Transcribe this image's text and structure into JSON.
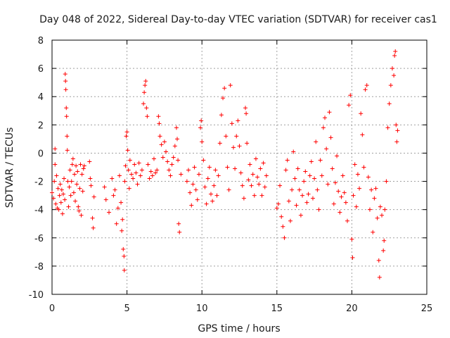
{
  "chart_data": {
    "type": "scatter",
    "title": "Day 048 of 2022, Sidereal Day-to-day VTEC variation (SDTVAR) for receiver cas1",
    "xlabel": "GPS time / hours",
    "ylabel": "SDTVAR / TECUs",
    "xlim": [
      0,
      25
    ],
    "ylim": [
      -10,
      8
    ],
    "xticks": [
      0,
      5,
      10,
      15,
      20,
      25
    ],
    "yticks": [
      -10,
      -8,
      -6,
      -4,
      -2,
      0,
      2,
      4,
      6,
      8
    ],
    "grid": true,
    "marker": "+",
    "marker_color": "#ff0000",
    "series": [
      {
        "name": "SDTVAR",
        "points": [
          [
            0.0,
            -2.8
          ],
          [
            0.1,
            -3.2
          ],
          [
            0.15,
            -2.0
          ],
          [
            0.2,
            -0.8
          ],
          [
            0.2,
            0.3
          ],
          [
            0.25,
            -3.6
          ],
          [
            0.3,
            -1.6
          ],
          [
            0.35,
            -3.9
          ],
          [
            0.4,
            -2.5
          ],
          [
            0.45,
            -4.0
          ],
          [
            0.5,
            -3.0
          ],
          [
            0.55,
            -2.2
          ],
          [
            0.6,
            -3.5
          ],
          [
            0.65,
            -2.6
          ],
          [
            0.7,
            -4.3
          ],
          [
            0.75,
            -2.9
          ],
          [
            0.8,
            -1.8
          ],
          [
            0.85,
            -3.3
          ],
          [
            0.88,
            5.6
          ],
          [
            0.9,
            5.1
          ],
          [
            0.92,
            4.5
          ],
          [
            0.95,
            3.2
          ],
          [
            0.97,
            2.6
          ],
          [
            1.0,
            1.2
          ],
          [
            1.02,
            0.2
          ],
          [
            1.05,
            -2.0
          ],
          [
            1.1,
            -3.8
          ],
          [
            1.15,
            -2.4
          ],
          [
            1.2,
            -1.2
          ],
          [
            1.25,
            -3.0
          ],
          [
            1.3,
            -2.0
          ],
          [
            1.35,
            -0.8
          ],
          [
            1.4,
            -0.4
          ],
          [
            1.45,
            -2.8
          ],
          [
            1.5,
            -1.5
          ],
          [
            1.55,
            -3.4
          ],
          [
            1.6,
            -0.9
          ],
          [
            1.65,
            -2.2
          ],
          [
            1.7,
            -1.3
          ],
          [
            1.75,
            -3.8
          ],
          [
            1.8,
            -4.1
          ],
          [
            1.85,
            -2.5
          ],
          [
            1.9,
            -0.8
          ],
          [
            1.95,
            -4.4
          ],
          [
            2.0,
            -1.5
          ],
          [
            2.05,
            -2.7
          ],
          [
            2.1,
            -1.1
          ],
          [
            2.15,
            -0.9
          ],
          [
            2.5,
            -0.6
          ],
          [
            2.55,
            -1.8
          ],
          [
            2.6,
            -2.3
          ],
          [
            2.7,
            -4.6
          ],
          [
            2.75,
            -5.3
          ],
          [
            2.8,
            -3.1
          ],
          [
            3.5,
            -2.4
          ],
          [
            3.6,
            -3.3
          ],
          [
            3.8,
            -4.2
          ],
          [
            4.0,
            -1.8
          ],
          [
            4.1,
            -3.0
          ],
          [
            4.2,
            -2.6
          ],
          [
            4.3,
            -5.0
          ],
          [
            4.4,
            -3.9
          ],
          [
            4.5,
            -1.6
          ],
          [
            4.6,
            -3.5
          ],
          [
            4.65,
            -5.5
          ],
          [
            4.7,
            -4.7
          ],
          [
            4.75,
            -6.8
          ],
          [
            4.8,
            -7.3
          ],
          [
            4.82,
            -8.3
          ],
          [
            4.85,
            -2.0
          ],
          [
            4.9,
            -0.9
          ],
          [
            4.95,
            1.2
          ],
          [
            5.0,
            1.5
          ],
          [
            5.05,
            0.2
          ],
          [
            5.1,
            -1.2
          ],
          [
            5.15,
            -2.5
          ],
          [
            5.2,
            -0.5
          ],
          [
            5.3,
            -1.5
          ],
          [
            5.4,
            -1.8
          ],
          [
            5.5,
            -0.8
          ],
          [
            5.6,
            -1.4
          ],
          [
            5.7,
            -2.2
          ],
          [
            5.8,
            -0.7
          ],
          [
            5.9,
            -1.6
          ],
          [
            6.0,
            -1.2
          ],
          [
            6.1,
            3.5
          ],
          [
            6.15,
            4.3
          ],
          [
            6.2,
            4.8
          ],
          [
            6.25,
            5.1
          ],
          [
            6.3,
            3.2
          ],
          [
            6.35,
            2.6
          ],
          [
            6.4,
            -0.8
          ],
          [
            6.5,
            -1.8
          ],
          [
            6.6,
            -1.3
          ],
          [
            6.7,
            -1.6
          ],
          [
            6.8,
            -0.4
          ],
          [
            6.9,
            -1.4
          ],
          [
            7.0,
            -1.2
          ],
          [
            7.1,
            2.6
          ],
          [
            7.15,
            2.1
          ],
          [
            7.2,
            1.2
          ],
          [
            7.3,
            0.6
          ],
          [
            7.4,
            -0.3
          ],
          [
            7.5,
            0.8
          ],
          [
            7.6,
            0.1
          ],
          [
            7.7,
            -0.6
          ],
          [
            7.8,
            -1.2
          ],
          [
            7.9,
            -1.6
          ],
          [
            8.0,
            -0.8
          ],
          [
            8.1,
            -0.3
          ],
          [
            8.2,
            0.5
          ],
          [
            8.3,
            1.8
          ],
          [
            8.35,
            1.0
          ],
          [
            8.4,
            -0.5
          ],
          [
            8.45,
            -5.0
          ],
          [
            8.5,
            -5.6
          ],
          [
            8.6,
            -1.5
          ],
          [
            9.0,
            -2.0
          ],
          [
            9.1,
            -1.2
          ],
          [
            9.2,
            -2.8
          ],
          [
            9.3,
            -3.7
          ],
          [
            9.4,
            -2.2
          ],
          [
            9.5,
            -1.0
          ],
          [
            9.6,
            -2.6
          ],
          [
            9.7,
            -3.3
          ],
          [
            9.8,
            -1.5
          ],
          [
            9.9,
            1.8
          ],
          [
            9.95,
            2.3
          ],
          [
            10.0,
            0.8
          ],
          [
            10.1,
            -0.5
          ],
          [
            10.2,
            -2.4
          ],
          [
            10.3,
            -3.6
          ],
          [
            10.4,
            -1.8
          ],
          [
            10.5,
            -1.0
          ],
          [
            10.6,
            -2.9
          ],
          [
            10.7,
            -3.4
          ],
          [
            10.8,
            -2.3
          ],
          [
            10.9,
            -1.2
          ],
          [
            11.0,
            -3.0
          ],
          [
            11.1,
            -1.6
          ],
          [
            11.2,
            0.7
          ],
          [
            11.3,
            2.7
          ],
          [
            11.4,
            3.9
          ],
          [
            11.5,
            4.6
          ],
          [
            11.6,
            1.2
          ],
          [
            11.7,
            -1.0
          ],
          [
            11.8,
            -2.6
          ],
          [
            11.9,
            4.8
          ],
          [
            12.0,
            2.1
          ],
          [
            12.1,
            0.4
          ],
          [
            12.2,
            -1.1
          ],
          [
            12.3,
            1.2
          ],
          [
            12.4,
            2.3
          ],
          [
            12.5,
            0.5
          ],
          [
            12.6,
            -1.4
          ],
          [
            12.7,
            -2.3
          ],
          [
            12.8,
            -3.2
          ],
          [
            12.9,
            3.2
          ],
          [
            12.95,
            2.8
          ],
          [
            13.0,
            0.7
          ],
          [
            13.1,
            -1.9
          ],
          [
            13.2,
            -0.8
          ],
          [
            13.3,
            -2.3
          ],
          [
            13.4,
            -1.5
          ],
          [
            13.5,
            -3.0
          ],
          [
            13.6,
            -0.4
          ],
          [
            13.7,
            -1.7
          ],
          [
            13.8,
            -2.2
          ],
          [
            13.9,
            -1.1
          ],
          [
            14.0,
            -3.0
          ],
          [
            14.1,
            -0.7
          ],
          [
            14.2,
            -2.4
          ],
          [
            14.3,
            -1.6
          ],
          [
            15.0,
            -3.9
          ],
          [
            15.1,
            -3.6
          ],
          [
            15.2,
            -2.3
          ],
          [
            15.3,
            -4.5
          ],
          [
            15.4,
            -5.2
          ],
          [
            15.5,
            -6.0
          ],
          [
            15.6,
            -1.2
          ],
          [
            15.7,
            -0.5
          ],
          [
            15.8,
            -3.4
          ],
          [
            15.9,
            -4.8
          ],
          [
            16.0,
            -2.6
          ],
          [
            16.1,
            0.1
          ],
          [
            16.2,
            -1.8
          ],
          [
            16.3,
            -3.7
          ],
          [
            16.4,
            -1.1
          ],
          [
            16.5,
            -2.6
          ],
          [
            16.6,
            -4.4
          ],
          [
            16.7,
            -3.0
          ],
          [
            16.8,
            -2.0
          ],
          [
            16.9,
            -1.3
          ],
          [
            17.0,
            -3.5
          ],
          [
            17.1,
            -2.9
          ],
          [
            17.2,
            -1.6
          ],
          [
            17.3,
            -0.6
          ],
          [
            17.4,
            -3.2
          ],
          [
            17.5,
            -1.8
          ],
          [
            17.6,
            0.8
          ],
          [
            17.7,
            -2.6
          ],
          [
            17.8,
            -4.0
          ],
          [
            17.9,
            -0.5
          ],
          [
            18.0,
            -1.6
          ],
          [
            18.1,
            1.8
          ],
          [
            18.2,
            2.5
          ],
          [
            18.3,
            0.3
          ],
          [
            18.4,
            -2.2
          ],
          [
            18.5,
            2.9
          ],
          [
            18.6,
            1.1
          ],
          [
            18.7,
            -1.1
          ],
          [
            18.8,
            -3.6
          ],
          [
            18.9,
            -2.1
          ],
          [
            19.0,
            -0.2
          ],
          [
            19.1,
            -2.7
          ],
          [
            19.2,
            -4.2
          ],
          [
            19.3,
            -3.1
          ],
          [
            19.4,
            -1.6
          ],
          [
            19.5,
            -2.8
          ],
          [
            19.6,
            -3.5
          ],
          [
            19.7,
            -4.8
          ],
          [
            19.8,
            3.4
          ],
          [
            19.9,
            4.1
          ],
          [
            20.0,
            -6.1
          ],
          [
            20.05,
            -7.4
          ],
          [
            20.1,
            -3.0
          ],
          [
            20.2,
            -0.8
          ],
          [
            20.3,
            -3.8
          ],
          [
            20.4,
            -1.5
          ],
          [
            20.5,
            -2.5
          ],
          [
            20.6,
            2.8
          ],
          [
            20.7,
            1.3
          ],
          [
            20.8,
            -1.0
          ],
          [
            20.9,
            4.5
          ],
          [
            21.0,
            4.8
          ],
          [
            21.1,
            -1.7
          ],
          [
            21.2,
            -4.0
          ],
          [
            21.3,
            -2.6
          ],
          [
            21.4,
            -5.6
          ],
          [
            21.5,
            -3.2
          ],
          [
            21.6,
            -2.5
          ],
          [
            21.7,
            -4.6
          ],
          [
            21.8,
            -7.6
          ],
          [
            21.85,
            -8.8
          ],
          [
            21.9,
            -3.8
          ],
          [
            22.0,
            -4.4
          ],
          [
            22.1,
            -6.9
          ],
          [
            22.15,
            -6.2
          ],
          [
            22.2,
            -4.0
          ],
          [
            22.3,
            -2.0
          ],
          [
            22.4,
            1.8
          ],
          [
            22.5,
            3.5
          ],
          [
            22.6,
            4.8
          ],
          [
            22.7,
            6.0
          ],
          [
            22.8,
            5.5
          ],
          [
            22.85,
            6.9
          ],
          [
            22.9,
            7.2
          ],
          [
            22.95,
            2.0
          ],
          [
            23.0,
            0.8
          ],
          [
            23.05,
            1.6
          ]
        ]
      }
    ]
  }
}
